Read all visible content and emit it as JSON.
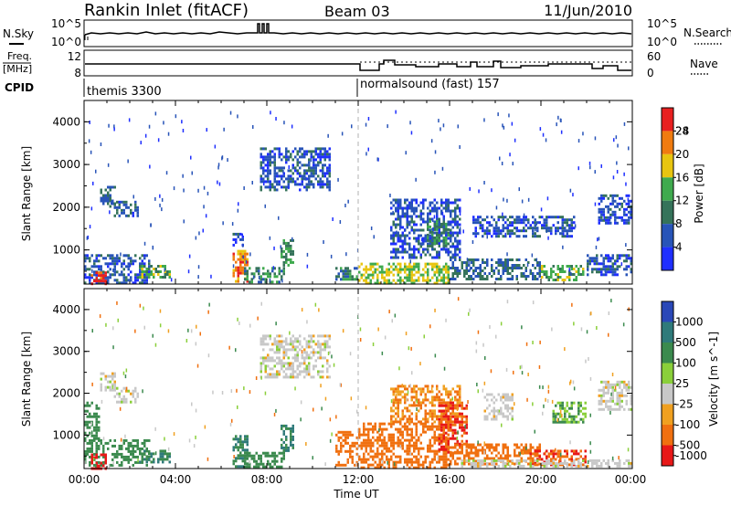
{
  "header": {
    "title": "Rankin Inlet (fitACF)",
    "beam": "Beam 03",
    "date": "11/Jun/2010"
  },
  "nsky_panel": {
    "left_label": "N.Sky",
    "left_ticks": [
      "10^5",
      "10^0"
    ],
    "right_label": "N.Search",
    "right_ticks": [
      "10^5",
      "10^0"
    ]
  },
  "freq_panel": {
    "left_label_line1": "Freq.",
    "left_label_line2": "[MHz]",
    "left_ticks": [
      "12",
      "8"
    ],
    "right_label": "Nave",
    "right_ticks": [
      "60",
      "0"
    ]
  },
  "cpid_panel": {
    "label": "CPID",
    "programs": [
      {
        "name": "themis 3300",
        "start_hour": 0
      },
      {
        "name": "normalsound (fast) 157",
        "start_hour": 12
      }
    ]
  },
  "x_axis": {
    "label": "Time UT",
    "ticks": [
      "00:00",
      "04:00",
      "08:00",
      "12:00",
      "16:00",
      "20:00",
      "00:00"
    ]
  },
  "y_axis": {
    "label": "Slant Range [km]",
    "ticks": [
      "1000",
      "2000",
      "3000",
      "4000"
    ]
  },
  "power_colorbar": {
    "label": "Power [dB]",
    "ticks": [
      "4",
      "8",
      "12",
      "16",
      "20",
      "24",
      "28"
    ],
    "colors": [
      "#1f2fff",
      "#2854b8",
      "#35735a",
      "#3faa4e",
      "#e8c510",
      "#f07b10",
      "#e82020"
    ]
  },
  "velocity_colorbar": {
    "label": "Velocity [m s^-1]",
    "ticks": [
      "1000",
      "500",
      "100",
      "25",
      "-25",
      "-100",
      "-500",
      "-1000"
    ],
    "colors": [
      "#2a48b8",
      "#2f7a7a",
      "#3b8a4e",
      "#8acf3a",
      "#c8c8c8",
      "#f0a020",
      "#f07010",
      "#e81818"
    ]
  },
  "chart_data": [
    {
      "type": "heatmap",
      "name": "power",
      "x_unit": "hours UT",
      "y_unit": "km",
      "xlim": [
        0,
        24
      ],
      "ylim": [
        200,
        4500
      ],
      "ylabel": "Slant Range [km]",
      "colorbar_label": "Power [dB]",
      "echo_regions": [
        {
          "x0": 0.0,
          "x1": 2.9,
          "y0": 250,
          "y1": 900,
          "value": 8
        },
        {
          "x0": 0.7,
          "x1": 1.4,
          "y0": 2050,
          "y1": 2500,
          "value": 10
        },
        {
          "x0": 1.3,
          "x1": 2.4,
          "y0": 1800,
          "y1": 2150,
          "value": 8
        },
        {
          "x0": 2.4,
          "x1": 3.8,
          "y0": 350,
          "y1": 650,
          "value": 16
        },
        {
          "x0": 0.3,
          "x1": 1.0,
          "y0": 230,
          "y1": 560,
          "value": 28
        },
        {
          "x0": 6.5,
          "x1": 7.2,
          "y0": 250,
          "y1": 1000,
          "value": 24
        },
        {
          "x0": 7.0,
          "x1": 8.8,
          "y0": 250,
          "y1": 600,
          "value": 12
        },
        {
          "x0": 8.6,
          "x1": 9.2,
          "y0": 650,
          "y1": 1250,
          "value": 14
        },
        {
          "x0": 6.5,
          "x1": 7.0,
          "y0": 1100,
          "y1": 1400,
          "value": 8
        },
        {
          "x0": 7.7,
          "x1": 10.8,
          "y0": 2400,
          "y1": 3400,
          "value": 8
        },
        {
          "x0": 11.0,
          "x1": 12.0,
          "y0": 300,
          "y1": 600,
          "value": 12
        },
        {
          "x0": 12.0,
          "x1": 16.0,
          "y0": 250,
          "y1": 700,
          "value": 18
        },
        {
          "x0": 13.4,
          "x1": 16.5,
          "y0": 800,
          "y1": 2200,
          "value": 8
        },
        {
          "x0": 15.0,
          "x1": 16.0,
          "y0": 1100,
          "y1": 1700,
          "value": 14
        },
        {
          "x0": 16.0,
          "x1": 20.0,
          "y0": 300,
          "y1": 800,
          "value": 10
        },
        {
          "x0": 17.0,
          "x1": 21.5,
          "y0": 1300,
          "y1": 1800,
          "value": 8
        },
        {
          "x0": 20.0,
          "x1": 21.9,
          "y0": 300,
          "y1": 650,
          "value": 16
        },
        {
          "x0": 22.0,
          "x1": 24.0,
          "y0": 400,
          "y1": 900,
          "value": 8
        },
        {
          "x0": 22.5,
          "x1": 24.0,
          "y0": 1600,
          "y1": 2300,
          "value": 8
        }
      ]
    },
    {
      "type": "heatmap",
      "name": "velocity",
      "x_unit": "hours UT",
      "y_unit": "km",
      "xlim": [
        0,
        24
      ],
      "ylim": [
        200,
        4500
      ],
      "ylabel": "Slant Range [km]",
      "colorbar_label": "Velocity [m s^-1]",
      "echo_regions": [
        {
          "x0": 0.0,
          "x1": 2.9,
          "y0": 250,
          "y1": 900,
          "value": 200
        },
        {
          "x0": 0.0,
          "x1": 0.7,
          "y0": 900,
          "y1": 1800,
          "value": 200
        },
        {
          "x0": 0.7,
          "x1": 1.4,
          "y0": 2050,
          "y1": 2500,
          "value": 0
        },
        {
          "x0": 1.3,
          "x1": 2.4,
          "y0": 1800,
          "y1": 2150,
          "value": 0
        },
        {
          "x0": 2.4,
          "x1": 3.8,
          "y0": 350,
          "y1": 650,
          "value": 300
        },
        {
          "x0": 0.3,
          "x1": 1.0,
          "y0": 230,
          "y1": 560,
          "value": -800
        },
        {
          "x0": 6.5,
          "x1": 7.2,
          "y0": 250,
          "y1": 1000,
          "value": 300
        },
        {
          "x0": 7.0,
          "x1": 8.8,
          "y0": 250,
          "y1": 600,
          "value": 200
        },
        {
          "x0": 8.6,
          "x1": 9.2,
          "y0": 650,
          "y1": 1250,
          "value": 300
        },
        {
          "x0": 7.7,
          "x1": 10.8,
          "y0": 2400,
          "y1": 3400,
          "value": 0
        },
        {
          "x0": 11.0,
          "x1": 12.0,
          "y0": 300,
          "y1": 1100,
          "value": -150
        },
        {
          "x0": 12.0,
          "x1": 16.0,
          "y0": 250,
          "y1": 1300,
          "value": -200
        },
        {
          "x0": 13.4,
          "x1": 16.5,
          "y0": 1300,
          "y1": 2200,
          "value": -60
        },
        {
          "x0": 15.5,
          "x1": 16.8,
          "y0": 600,
          "y1": 1800,
          "value": -300
        },
        {
          "x0": 16.0,
          "x1": 20.0,
          "y0": 300,
          "y1": 800,
          "value": -150
        },
        {
          "x0": 17.5,
          "x1": 18.8,
          "y0": 1400,
          "y1": 2000,
          "value": 0
        },
        {
          "x0": 19.5,
          "x1": 22.0,
          "y0": 300,
          "y1": 650,
          "value": -300
        },
        {
          "x0": 20.5,
          "x1": 22.0,
          "y0": 1300,
          "y1": 1800,
          "value": 60
        },
        {
          "x0": 22.5,
          "x1": 24.0,
          "y0": 1600,
          "y1": 2300,
          "value": 0
        },
        {
          "x0": 16.5,
          "x1": 24.0,
          "y0": 230,
          "y1": 420,
          "value": 0
        }
      ]
    }
  ]
}
